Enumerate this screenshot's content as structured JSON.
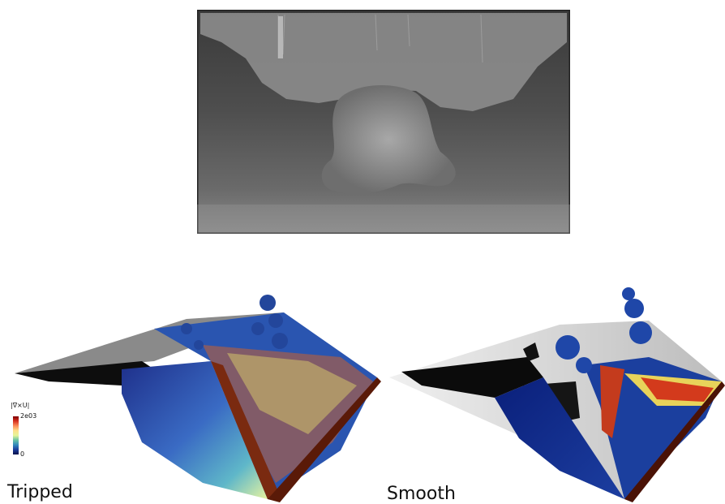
{
  "panels": {
    "tripped_label": "Tripped",
    "smooth_label": "Smooth"
  },
  "legend": {
    "title": "|∇×U|",
    "max": "2e03",
    "min": "0"
  },
  "colors": {
    "colormap_high": "#7f0000",
    "colormap_mid": "#fee08b",
    "colormap_low": "#08104a",
    "wing_surface": "#d9d9d9",
    "shadow_region": "#111111"
  }
}
